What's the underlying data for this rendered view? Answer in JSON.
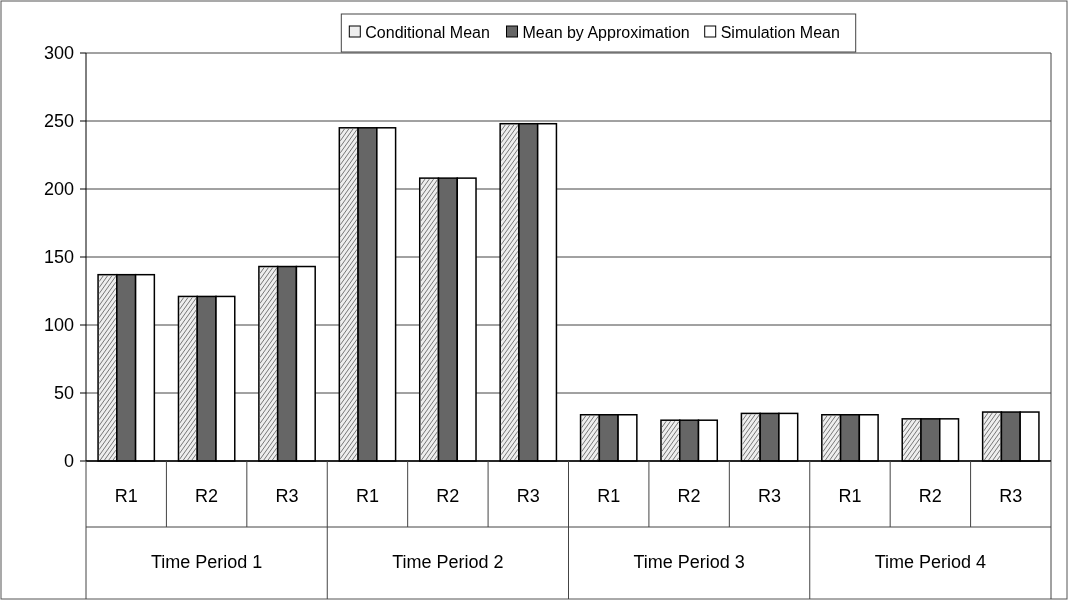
{
  "chart_data": {
    "type": "bar",
    "categories": [
      "R1",
      "R2",
      "R3",
      "R1",
      "R2",
      "R3",
      "R1",
      "R2",
      "R3",
      "R1",
      "R2",
      "R3"
    ],
    "annotations": [
      "Time Period 1",
      "Time Period 2",
      "Time Period 3",
      "Time Period 4"
    ],
    "series": [
      {
        "name": "Conditional Mean",
        "color": "#eeeeee",
        "values": [
          137,
          121,
          143,
          245,
          208,
          248,
          34,
          30,
          35,
          34,
          31,
          36
        ]
      },
      {
        "name": "Mean by Approximation",
        "color": "#666666",
        "values": [
          137,
          121,
          143,
          245,
          208,
          248,
          34,
          30,
          35,
          34,
          31,
          36
        ]
      },
      {
        "name": "Simulation Mean",
        "color": "#ffffff",
        "values": [
          137,
          121,
          143,
          245,
          208,
          248,
          34,
          30,
          35,
          34,
          31,
          36
        ]
      }
    ],
    "ylim": [
      0,
      300
    ],
    "yticks": [
      0,
      50,
      100,
      150,
      200,
      250,
      300
    ],
    "grid": "y",
    "legend": "top"
  }
}
